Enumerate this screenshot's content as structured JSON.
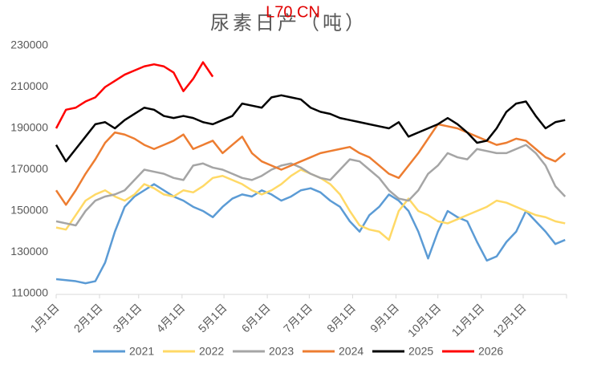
{
  "chart_data": {
    "type": "line",
    "title": "尿素日产（吨）",
    "annotation": "L70.CN",
    "xlim": [
      0,
      365
    ],
    "xticks": [
      {
        "value": 0,
        "label": "1月1日"
      },
      {
        "value": 31,
        "label": "2月1日"
      },
      {
        "value": 59,
        "label": "3月1日"
      },
      {
        "value": 90,
        "label": "4月1日"
      },
      {
        "value": 120,
        "label": "5月1日"
      },
      {
        "value": 151,
        "label": "6月1日"
      },
      {
        "value": 181,
        "label": "7月1日"
      },
      {
        "value": 212,
        "label": "8月1日"
      },
      {
        "value": 243,
        "label": "9月1日"
      },
      {
        "value": 273,
        "label": "10月1日"
      },
      {
        "value": 304,
        "label": "11月1日"
      },
      {
        "value": 334,
        "label": "12月1日"
      }
    ],
    "ylim": [
      110000,
      230000
    ],
    "yticks": [
      110000,
      130000,
      150000,
      170000,
      190000,
      210000,
      230000
    ],
    "x": [
      0,
      7,
      14,
      21,
      28,
      35,
      42,
      49,
      56,
      63,
      70,
      77,
      84,
      91,
      98,
      105,
      112,
      119,
      126,
      133,
      140,
      147,
      154,
      161,
      168,
      175,
      182,
      189,
      196,
      203,
      210,
      217,
      224,
      231,
      238,
      245,
      252,
      259,
      266,
      273,
      280,
      287,
      294,
      301,
      308,
      315,
      322,
      329,
      336,
      343,
      350,
      357,
      364
    ],
    "legend": "bottom",
    "series": [
      {
        "name": "2021",
        "color": "#5b9bd5",
        "values": [
          117000,
          116500,
          116000,
          115000,
          116000,
          125000,
          140000,
          152000,
          157000,
          160000,
          163000,
          160000,
          157000,
          155000,
          152000,
          150000,
          147000,
          152000,
          156000,
          158000,
          157000,
          160000,
          158000,
          155000,
          157000,
          160000,
          161000,
          159000,
          155000,
          152000,
          145000,
          140000,
          148000,
          152000,
          158000,
          155000,
          150000,
          140000,
          127000,
          140000,
          150000,
          147000,
          145000,
          135000,
          126000,
          128000,
          135000,
          140000,
          150000,
          145000,
          140000,
          134000,
          136000
        ]
      },
      {
        "name": "2022",
        "color": "#ffd966",
        "values": [
          142000,
          141000,
          148000,
          155000,
          158000,
          160000,
          157000,
          155000,
          158000,
          163000,
          161000,
          158000,
          157000,
          160000,
          159000,
          162000,
          166000,
          167000,
          165000,
          163000,
          160000,
          158000,
          160000,
          163000,
          167000,
          170000,
          168000,
          166000,
          163000,
          158000,
          150000,
          143000,
          141000,
          140000,
          136000,
          150000,
          156000,
          150000,
          148000,
          145000,
          144000,
          146000,
          148000,
          150000,
          152000,
          155000,
          154000,
          152000,
          150000,
          148000,
          147000,
          145000,
          144000
        ]
      },
      {
        "name": "2023",
        "color": "#a5a5a5",
        "values": [
          145000,
          144000,
          143000,
          150000,
          155000,
          157000,
          158000,
          160000,
          165000,
          170000,
          169000,
          168000,
          166000,
          165000,
          172000,
          173000,
          171000,
          170000,
          168000,
          166000,
          165000,
          167000,
          170000,
          172000,
          173000,
          171000,
          168000,
          166000,
          165000,
          170000,
          175000,
          174000,
          170000,
          166000,
          160000,
          156000,
          155000,
          160000,
          168000,
          172000,
          178000,
          176000,
          175000,
          180000,
          179000,
          178000,
          178000,
          180000,
          182000,
          178000,
          172000,
          162000,
          157000
        ]
      },
      {
        "name": "2024",
        "color": "#ed7d31",
        "values": [
          160000,
          153000,
          160000,
          168000,
          175000,
          183000,
          188000,
          187000,
          185000,
          182000,
          180000,
          182000,
          184000,
          187000,
          180000,
          182000,
          184000,
          178000,
          182000,
          186000,
          178000,
          174000,
          172000,
          170000,
          172000,
          174000,
          176000,
          178000,
          179000,
          180000,
          181000,
          178000,
          176000,
          172000,
          168000,
          166000,
          172000,
          178000,
          185000,
          192000,
          191000,
          190000,
          188000,
          186000,
          184000,
          182000,
          183000,
          185000,
          184000,
          180000,
          176000,
          174000,
          178000
        ]
      },
      {
        "name": "2025",
        "color": "#000000",
        "values": [
          182000,
          174000,
          180000,
          186000,
          192000,
          193000,
          190000,
          194000,
          197000,
          200000,
          199000,
          196000,
          195000,
          196000,
          195000,
          193000,
          192000,
          194000,
          196000,
          202000,
          201000,
          200000,
          205000,
          206000,
          205000,
          204000,
          200000,
          198000,
          197000,
          195000,
          194000,
          193000,
          192000,
          191000,
          190000,
          193000,
          186000,
          188000,
          190000,
          192000,
          195000,
          192000,
          188000,
          183000,
          184000,
          190000,
          198000,
          202000,
          203000,
          196000,
          190000,
          193000,
          194000
        ]
      },
      {
        "name": "2026",
        "color": "#ff0000",
        "values": [
          190000,
          199000,
          200000,
          203000,
          205000,
          210000,
          213000,
          216000,
          218000,
          220000,
          221000,
          220000,
          217000,
          208000,
          214000,
          222000,
          215000,
          null,
          null,
          null,
          null,
          null,
          null,
          null,
          null,
          null,
          null,
          null,
          null,
          null,
          null,
          null,
          null,
          null,
          null,
          null,
          null,
          null,
          null,
          null,
          null,
          null,
          null,
          null,
          null,
          null,
          null,
          null,
          null,
          null,
          null,
          null,
          null
        ]
      }
    ]
  }
}
